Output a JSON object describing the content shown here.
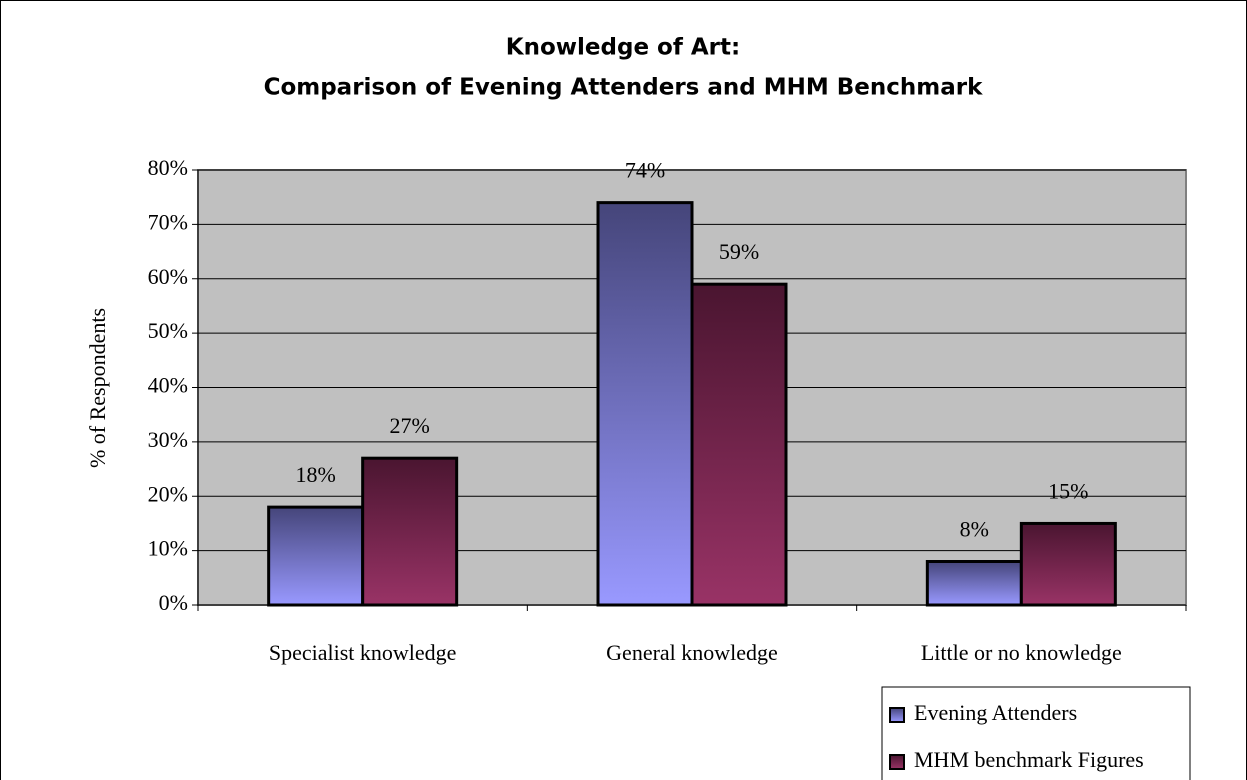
{
  "chart_data": {
    "type": "bar",
    "title": "Knowledge of Art:",
    "subtitle": "Comparison of Evening Attenders and MHM Benchmark",
    "y_label": "% of Respondents",
    "categories": [
      "Specialist knowledge",
      "General knowledge",
      "Little or no knowledge"
    ],
    "series": [
      {
        "name": "Evening Attenders",
        "color": "#9999ff",
        "values": [
          18,
          74,
          8
        ],
        "value_labels": [
          "18%",
          "74%",
          "8%"
        ]
      },
      {
        "name": "MHM benchmark Figures",
        "color": "#993366",
        "values": [
          27,
          59,
          15
        ],
        "value_labels": [
          "27%",
          "59%",
          "15%"
        ]
      }
    ],
    "ylim": [
      0,
      80
    ],
    "yticks": [
      {
        "value": 0,
        "label": "0%"
      },
      {
        "value": 10,
        "label": "10%"
      },
      {
        "value": 20,
        "label": "20%"
      },
      {
        "value": 30,
        "label": "30%"
      },
      {
        "value": 40,
        "label": "40%"
      },
      {
        "value": 50,
        "label": "50%"
      },
      {
        "value": 60,
        "label": "60%"
      },
      {
        "value": 70,
        "label": "70%"
      },
      {
        "value": 80,
        "label": "80%"
      }
    ],
    "grid": true,
    "legend": "bottom-right"
  }
}
